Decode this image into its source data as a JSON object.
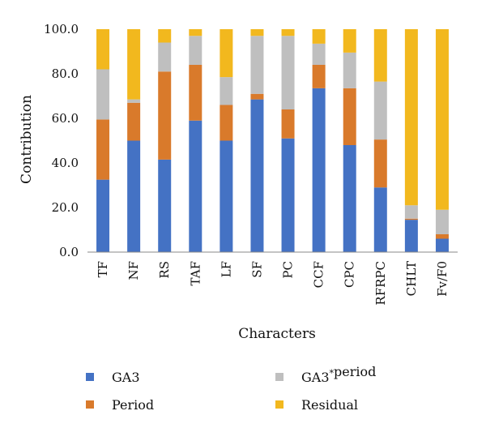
{
  "chart_data": {
    "type": "bar",
    "stacked": true,
    "title": "",
    "xlabel": "Characters",
    "ylabel": "Contribution",
    "ylim": [
      0,
      100
    ],
    "yticks": [
      "0.0",
      "20.0",
      "40.0",
      "60.0",
      "80.0",
      "100.0"
    ],
    "grid": false,
    "legend_position": "bottom",
    "categories": [
      "TF",
      "NF",
      "RS",
      "TAF",
      "LF",
      "SF",
      "PC",
      "CCF",
      "CPC",
      "RFRPC",
      "CHLT",
      "Fv/F0"
    ],
    "series": [
      {
        "name": "GA3",
        "color": "#4472C4",
        "values": [
          32.5,
          50,
          41.5,
          59,
          50,
          68.5,
          51,
          73.5,
          48,
          29,
          14.5,
          6
        ]
      },
      {
        "name": "Period",
        "color": "#D97A2B",
        "values": [
          27,
          17,
          39.5,
          25,
          16,
          2.5,
          13,
          10.5,
          25.5,
          21.5,
          0.5,
          2
        ]
      },
      {
        "name": "GA3*period",
        "name_parts": [
          "GA3",
          "*",
          "period"
        ],
        "color": "#BFBFBF",
        "values": [
          22.5,
          1.5,
          13,
          13,
          12.5,
          26,
          33,
          9.5,
          16,
          26,
          6,
          11
        ]
      },
      {
        "name": "Residual",
        "color": "#F2B81E",
        "values": [
          18,
          31.5,
          6,
          3,
          21.5,
          3,
          3,
          6.5,
          10.5,
          23.5,
          79,
          81
        ]
      }
    ]
  }
}
